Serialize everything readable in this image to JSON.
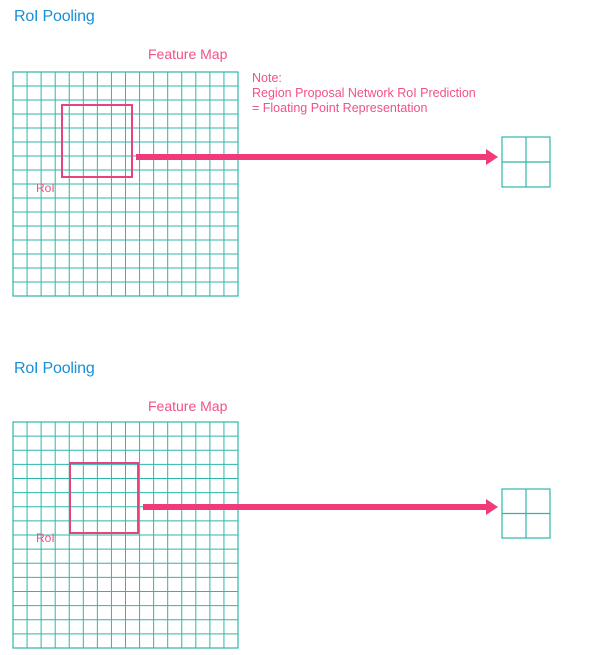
{
  "colors": {
    "grid": "#2db7a9",
    "roi": "#e8437e",
    "arrow": "#f03a7a",
    "title": "#1a8fd6",
    "label": "#f0528a"
  },
  "panels": [
    {
      "title": "RoI Pooling",
      "feature_map_label": "Feature Map",
      "roi_label": "RoI",
      "grid_cells": [
        16,
        16
      ],
      "output_cells": [
        2,
        2
      ],
      "note": {
        "heading": "Note:",
        "lines": [
          "Region Proposal Network RoI Prediction",
          "= Floating Point Representation"
        ]
      }
    },
    {
      "title": "RoI Pooling",
      "feature_map_label": "Feature Map",
      "roi_label": "RoI",
      "grid_cells": [
        16,
        16
      ],
      "output_cells": [
        2,
        2
      ]
    }
  ]
}
